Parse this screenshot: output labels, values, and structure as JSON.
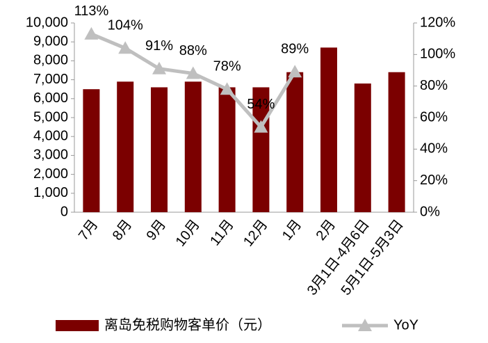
{
  "chart_data": {
    "type": "bar",
    "categories": [
      "7月",
      "8月",
      "9月",
      "10月",
      "11月",
      "12月",
      "1月",
      "2月",
      "3月1日-4月6日",
      "5月1日-5月3日"
    ],
    "series": [
      {
        "name": "离岛免税购物客单价（元）",
        "type": "bar",
        "color": "#7b0000",
        "values": [
          6500,
          6900,
          6600,
          6900,
          6600,
          6600,
          7400,
          8700,
          6800,
          7400
        ]
      },
      {
        "name": "YoY",
        "type": "line",
        "axis": "y2",
        "color": "#bfbfbf",
        "values": [
          113,
          104,
          91,
          88,
          78,
          54,
          89,
          null,
          null,
          null
        ],
        "value_labels": [
          "113%",
          "104%",
          "91%",
          "88%",
          "78%",
          "54%",
          "89%",
          null,
          null,
          null
        ]
      }
    ],
    "ylim": [
      0,
      10000
    ],
    "yticks": [
      0,
      {
        "value": 1000,
        "label": "1,000"
      },
      {
        "value": 2000,
        "label": "2,000"
      },
      {
        "value": 3000,
        "label": "3,000"
      },
      {
        "value": 4000,
        "label": "4,000"
      },
      {
        "value": 5000,
        "label": "5,000"
      },
      {
        "value": 6000,
        "label": "6,000"
      },
      {
        "value": 7000,
        "label": "7,000"
      },
      {
        "value": 8000,
        "label": "8,000"
      },
      {
        "value": 9000,
        "label": "9,000"
      },
      {
        "value": 10000,
        "label": "10,000"
      }
    ],
    "y2lim": [
      0,
      120
    ],
    "y2ticks": [
      {
        "value": 0,
        "label": "0%"
      },
      {
        "value": 20,
        "label": "20%"
      },
      {
        "value": 40,
        "label": "40%"
      },
      {
        "value": 60,
        "label": "60%"
      },
      {
        "value": 80,
        "label": "80%"
      },
      {
        "value": 100,
        "label": "100%"
      },
      {
        "value": 120,
        "label": "120%"
      }
    ],
    "grid": false
  }
}
